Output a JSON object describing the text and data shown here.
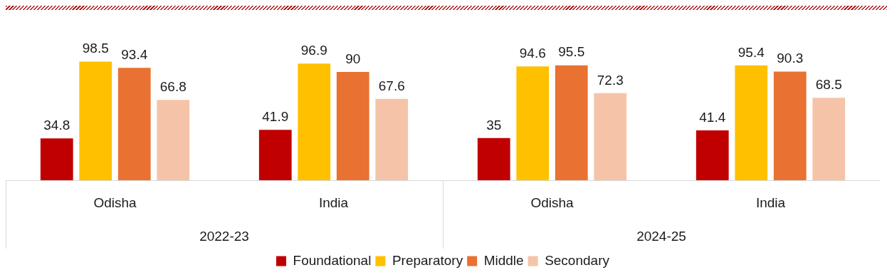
{
  "chart_data": {
    "type": "bar",
    "categories": [
      "Odisha",
      "India",
      "Odisha",
      "India"
    ],
    "annotations": [
      "2022-23",
      "2024-25"
    ],
    "series": [
      {
        "name": "Foundational",
        "color": "#c00000",
        "values": [
          34.8,
          41.9,
          35,
          41.4
        ]
      },
      {
        "name": "Preparatory",
        "color": "#ffc000",
        "values": [
          98.5,
          96.9,
          94.6,
          95.4
        ]
      },
      {
        "name": "Middle",
        "color": "#e97132",
        "values": [
          93.4,
          90,
          95.5,
          90.3
        ]
      },
      {
        "name": "Secondary",
        "color": "#f5c4a8",
        "values": [
          66.8,
          67.6,
          72.3,
          68.5
        ]
      }
    ],
    "data_labels": true,
    "legend": "bottom",
    "grid": false
  }
}
